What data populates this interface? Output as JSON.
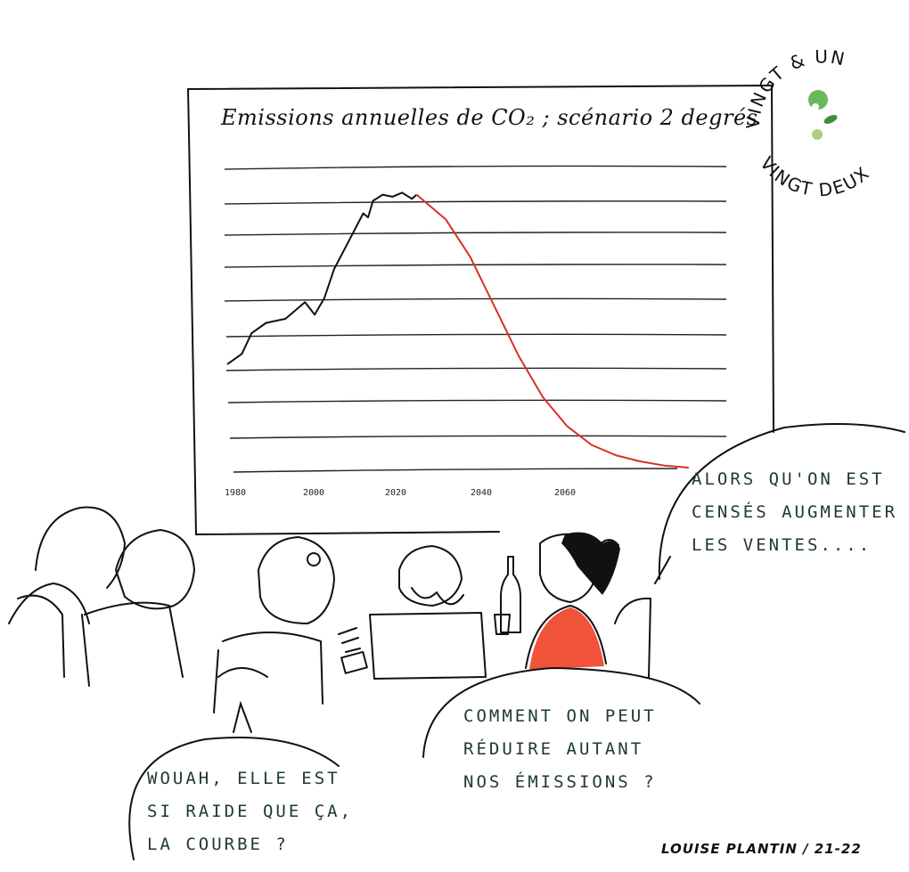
{
  "chart": {
    "title": "Emissions annuelles de CO₂ ; scénario 2 degrés",
    "x_ticks": [
      "1980",
      "2000",
      "2020",
      "2040",
      "2060"
    ]
  },
  "chart_data": {
    "type": "line",
    "title": "Emissions annuelles de CO₂ ; scénario 2 degrés",
    "xlabel": "",
    "ylabel": "",
    "xlim": [
      1980,
      2080
    ],
    "grid": true,
    "series": [
      {
        "x": [
          1980,
          1983,
          1985,
          1988,
          1992,
          1996,
          1998,
          2000,
          2002,
          2004,
          2006,
          2008,
          2009,
          2010,
          2012,
          2014,
          2016,
          2018,
          2019
        ],
        "y": [
          5.0,
          5.5,
          6.5,
          7.0,
          7.2,
          8.0,
          7.4,
          8.2,
          9.6,
          10.5,
          11.4,
          12.3,
          12.1,
          12.9,
          13.2,
          13.1,
          13.3,
          13.0,
          13.2
        ]
      },
      {
        "x": [
          2019,
          2025,
          2030,
          2035,
          2040,
          2045,
          2050,
          2055,
          2060,
          2065,
          2070,
          2075
        ],
        "y": [
          13.2,
          12.0,
          10.2,
          7.8,
          5.4,
          3.4,
          2.0,
          1.1,
          0.6,
          0.3,
          0.1,
          0.0
        ]
      }
    ],
    "colors": {
      "historical": "#111111",
      "scenario": "#d93025"
    }
  },
  "logo": {
    "line1": "VINGT & UN",
    "line2": "VINGT DEUX",
    "dot_colors": [
      "#6bb85a",
      "#3f8f3a",
      "#a9d07a"
    ]
  },
  "bubbles": {
    "right": [
      "ALORS QU'ON EST",
      "CENSÉS AUGMENTER",
      "LES VENTES...."
    ],
    "middle": [
      "COMMENT ON PEUT",
      "RÉDUIRE AUTANT",
      "NOS ÉMISSIONS ?"
    ],
    "left": [
      "WOUAH, ELLE EST",
      "SI RAIDE QUE ÇA,",
      "LA COURBE ?"
    ]
  },
  "credit": "LOUISE PLANTIN / 21-22",
  "colors": {
    "accent_red": "#f0523a",
    "text_green": "#1d3a2a"
  }
}
